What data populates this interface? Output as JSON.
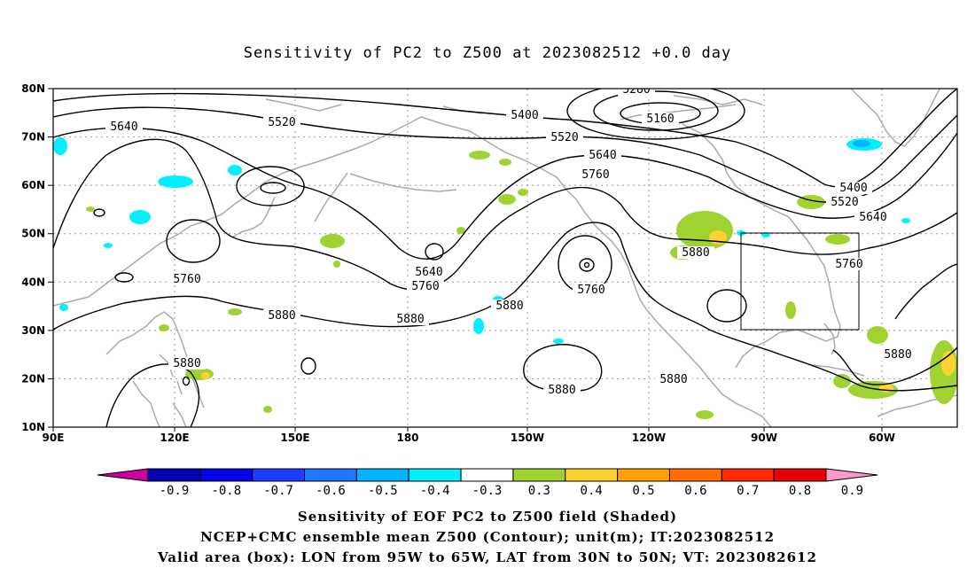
{
  "title": "Sensitivity of PC2 to Z500 at 2023082512 +0.0 day",
  "map": {
    "lat_ticks": [
      "80N",
      "70N",
      "60N",
      "50N",
      "40N",
      "30N",
      "20N",
      "10N"
    ],
    "lon_ticks": [
      "90E",
      "120E",
      "150E",
      "180",
      "150W",
      "120W",
      "90W",
      "60W"
    ],
    "contour_labels": [
      {
        "text": "5280",
        "name": "contour-label-5280"
      },
      {
        "text": "5160",
        "name": "contour-label-5160"
      },
      {
        "text": "5400",
        "name": "contour-label-5400-north"
      },
      {
        "text": "5520",
        "name": "contour-label-5520-west"
      },
      {
        "text": "5640",
        "name": "contour-label-5640-west"
      },
      {
        "text": "5520",
        "name": "contour-label-5520-central"
      },
      {
        "text": "5640",
        "name": "contour-label-5640-central"
      },
      {
        "text": "5760",
        "name": "contour-label-5760-central"
      },
      {
        "text": "5400",
        "name": "contour-label-5400-east"
      },
      {
        "text": "5520",
        "name": "contour-label-5520-east"
      },
      {
        "text": "5640",
        "name": "contour-label-5640-east"
      },
      {
        "text": "5760",
        "name": "contour-label-5760-east"
      },
      {
        "text": "5880",
        "name": "contour-label-5880-us"
      },
      {
        "text": "5640",
        "name": "contour-label-5640-pacific"
      },
      {
        "text": "5760",
        "name": "contour-label-5760-pacific"
      },
      {
        "text": "5760",
        "name": "contour-label-5760-low"
      },
      {
        "text": "5760",
        "name": "contour-label-5760-west"
      },
      {
        "text": "5880",
        "name": "contour-label-5880-west"
      },
      {
        "text": "5880",
        "name": "contour-label-5880-pacific"
      },
      {
        "text": "5880",
        "name": "contour-label-5880-hawaii"
      },
      {
        "text": "5880",
        "name": "contour-label-5880-south"
      },
      {
        "text": "5880",
        "name": "contour-label-5880-mexico"
      },
      {
        "text": "5880",
        "name": "contour-label-5880-atlantic"
      },
      {
        "text": "5880",
        "name": "contour-label-5880-asia"
      }
    ]
  },
  "colorbar": {
    "labels": [
      "-0.9",
      "-0.8",
      "-0.7",
      "-0.6",
      "-0.5",
      "-0.4",
      "-0.3",
      "0.3",
      "0.4",
      "0.5",
      "0.6",
      "0.7",
      "0.8",
      "0.9"
    ],
    "colors": [
      "#0000b4",
      "#0000e6",
      "#1e3cff",
      "#1e78ff",
      "#00b4ff",
      "#00f0ff",
      "#ffffff",
      "#a0d232",
      "#ffd232",
      "#ffa000",
      "#ff6e00",
      "#ff2800",
      "#e60000"
    ],
    "low_end_color": "#c800a0",
    "high_end_color": "#ff9ac8"
  },
  "captions": {
    "line1": "Sensitivity of EOF PC2 to Z500 field (Shaded)",
    "line2": "NCEP+CMC ensemble mean Z500 (Contour); unit(m); IT:2023082512",
    "line3": "Valid area (box): LON from 95W to 65W, LAT from 30N to 50N; VT: 2023082612"
  }
}
